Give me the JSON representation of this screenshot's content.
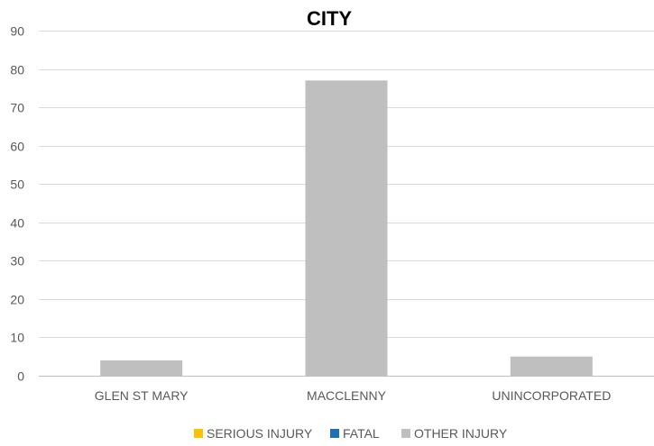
{
  "chart_data": {
    "type": "bar",
    "title": "CITY",
    "xlabel": "",
    "ylabel": "",
    "categories": [
      "GLEN ST MARY",
      "MACCLENNY",
      "UNINCORPORATED"
    ],
    "series": [
      {
        "name": "SERIOUS INJURY",
        "color": "#FFC000",
        "values": [
          0,
          0,
          0
        ]
      },
      {
        "name": "FATAL",
        "color": "#1F6FB4",
        "values": [
          0,
          0,
          0
        ]
      },
      {
        "name": "OTHER INJURY",
        "color": "#BFBFBF",
        "values": [
          4,
          77,
          5
        ]
      }
    ],
    "ylim": [
      0,
      90
    ],
    "yticks": [
      0,
      10,
      20,
      30,
      40,
      50,
      60,
      70,
      80,
      90
    ],
    "grid": true,
    "legend_position": "bottom"
  }
}
